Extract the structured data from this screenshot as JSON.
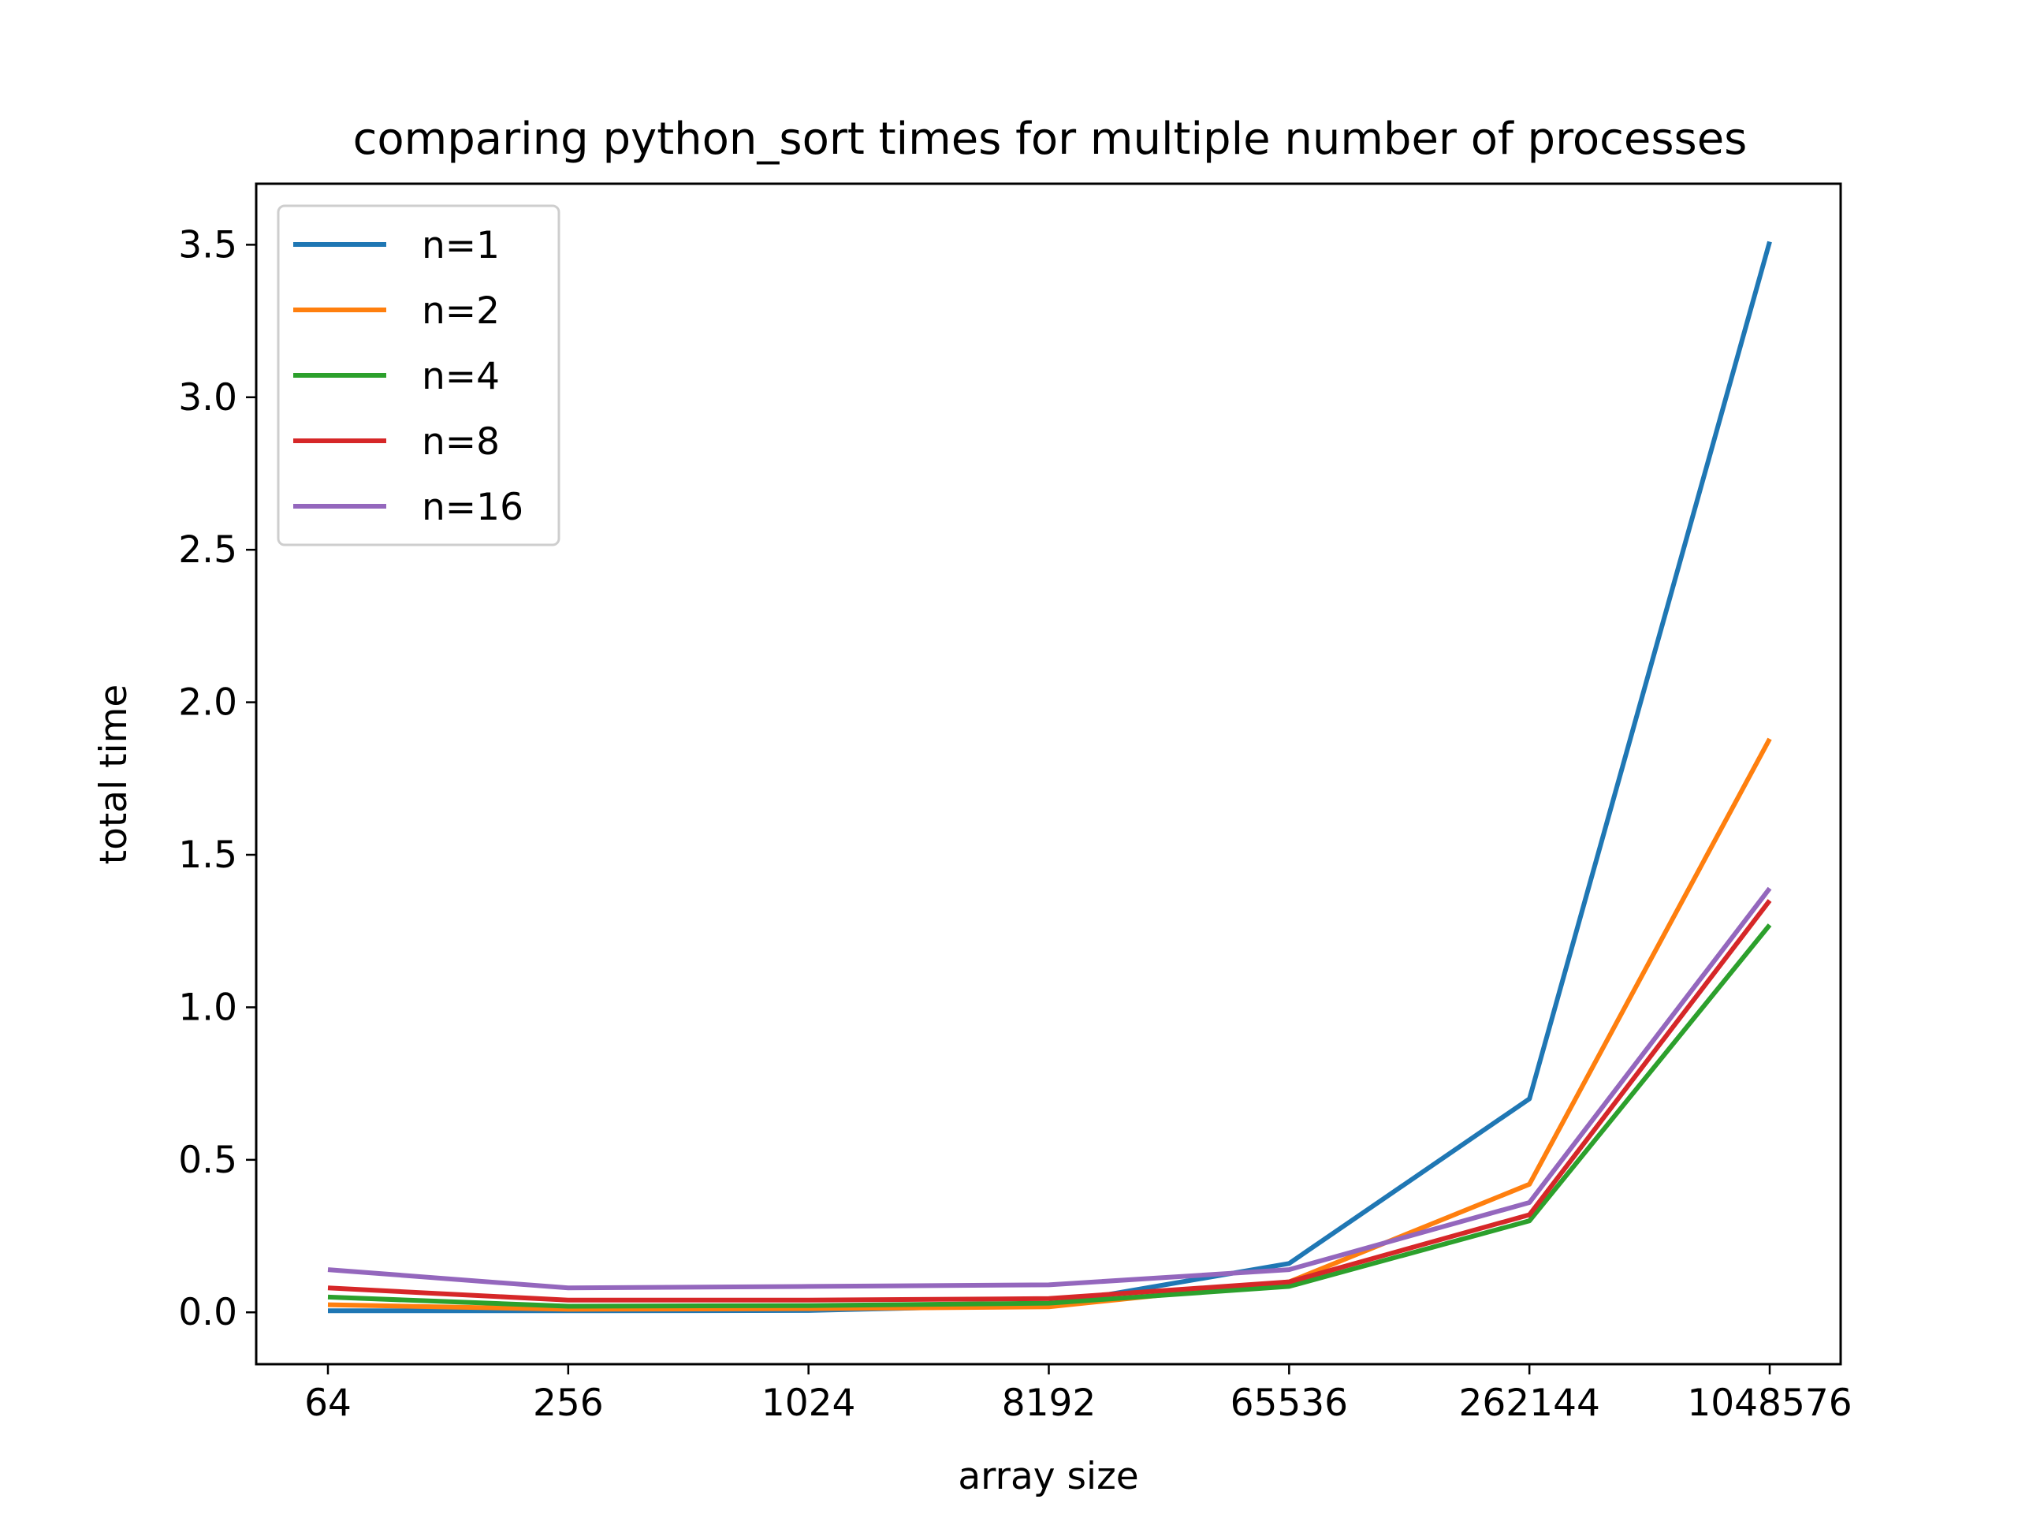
{
  "chart_data": {
    "type": "line",
    "title": "comparing python_sort times for multiple number of processes",
    "xlabel": "array size",
    "ylabel": "total time",
    "categories": [
      "64",
      "256",
      "1024",
      "8192",
      "65536",
      "262144",
      "1048576"
    ],
    "y_ticks": [
      "0.0",
      "0.5",
      "1.0",
      "1.5",
      "2.0",
      "2.5",
      "3.0",
      "3.5"
    ],
    "ylim": [
      -0.17,
      3.7
    ],
    "grid": false,
    "legend_position": "top-left",
    "series": [
      {
        "name": "n=1",
        "color": "#1f77b4",
        "values": [
          0.005,
          0.005,
          0.006,
          0.025,
          0.16,
          0.7,
          3.51
        ]
      },
      {
        "name": "n=2",
        "color": "#ff7f0e",
        "values": [
          0.025,
          0.01,
          0.012,
          0.018,
          0.1,
          0.42,
          1.88
        ]
      },
      {
        "name": "n=4",
        "color": "#2ca02c",
        "values": [
          0.05,
          0.02,
          0.022,
          0.03,
          0.085,
          0.3,
          1.27
        ]
      },
      {
        "name": "n=8",
        "color": "#d62728",
        "values": [
          0.08,
          0.04,
          0.04,
          0.045,
          0.1,
          0.32,
          1.35
        ]
      },
      {
        "name": "n=16",
        "color": "#9467bd",
        "values": [
          0.14,
          0.08,
          0.085,
          0.09,
          0.14,
          0.36,
          1.39
        ]
      }
    ]
  }
}
